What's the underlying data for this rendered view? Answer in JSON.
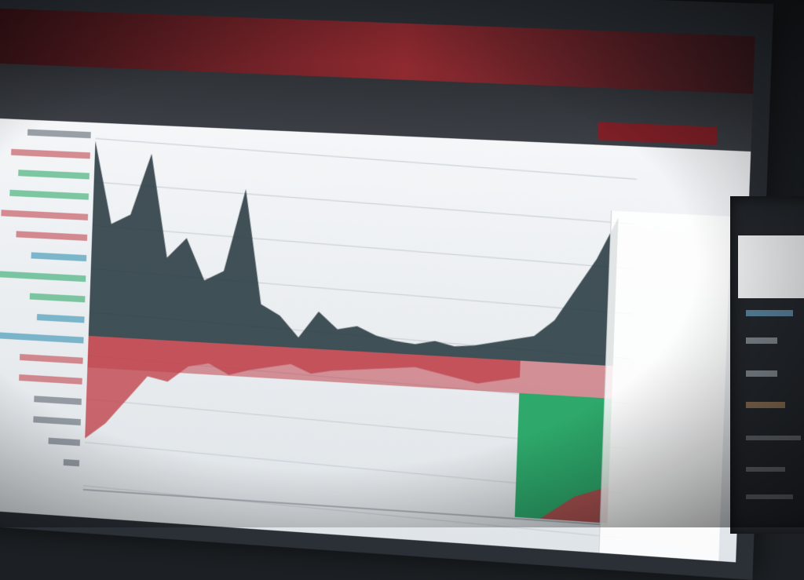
{
  "colors": {
    "title_bar": "#8e2a30",
    "positive": "#2ea86b",
    "negative": "#c0444c",
    "series_dark": "#2c3e45",
    "background": "#e9ecef"
  },
  "chart_data": {
    "type": "area",
    "description_only_visual": true,
    "upper_series": [
      0.95,
      0.55,
      0.6,
      0.9,
      0.4,
      0.5,
      0.3,
      0.35,
      0.75,
      0.2,
      0.15,
      0.05,
      0.18,
      0.1,
      0.12,
      0.08,
      0.06,
      0.05,
      0.07,
      0.05,
      0.06,
      0.08,
      0.1,
      0.12,
      0.2,
      0.35,
      0.5,
      0.7
    ],
    "lower_series": [
      0.5,
      0.42,
      0.3,
      0.18,
      0.2,
      0.12,
      0.1,
      0.15,
      0.12,
      0.1,
      0.08,
      0.12,
      0.1,
      0.09,
      0.08,
      0.07,
      0.06,
      0.08,
      0.1,
      0.12,
      0.1,
      0.08
    ],
    "green_block_value": 0.85,
    "grid": true
  },
  "side": {
    "card_icon": "document-icon"
  }
}
